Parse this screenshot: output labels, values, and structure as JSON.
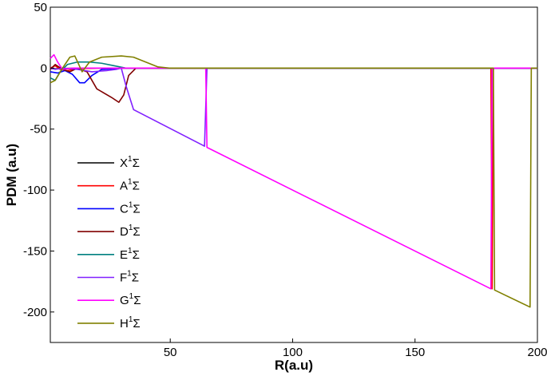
{
  "chart_data": {
    "type": "line",
    "xlabel": "R(a.u)",
    "ylabel": "PDM (a.u)",
    "xlim": [
      1,
      200
    ],
    "ylim": [
      -225,
      50
    ],
    "x_ticks": [
      50,
      100,
      150,
      200
    ],
    "y_ticks": [
      50,
      0,
      -50,
      -100,
      -150,
      -200
    ],
    "grid": false,
    "legend_position": "lower-left",
    "series": [
      {
        "name": "X",
        "name_sup": "1",
        "name_suffix": "Σ",
        "color": "#000000",
        "points": [
          [
            1,
            -0.2
          ],
          [
            3,
            -0.6
          ],
          [
            6,
            -0.3
          ],
          [
            10,
            -0.1
          ],
          [
            20,
            0
          ],
          [
            200,
            0
          ]
        ]
      },
      {
        "name": "A",
        "name_sup": "1",
        "name_suffix": "Σ",
        "color": "#ff0000",
        "points": [
          [
            1,
            0
          ],
          [
            3,
            2
          ],
          [
            5,
            -1
          ],
          [
            8,
            -2
          ],
          [
            12,
            -0.5
          ],
          [
            20,
            0
          ],
          [
            181,
            0
          ],
          [
            181.5,
            -181
          ],
          [
            182,
            0
          ],
          [
            200,
            0
          ]
        ]
      },
      {
        "name": "C",
        "name_sup": "1",
        "name_suffix": "Σ",
        "color": "#0000ff",
        "points": [
          [
            1,
            -3
          ],
          [
            4,
            -4
          ],
          [
            7,
            -2
          ],
          [
            10,
            -5
          ],
          [
            13,
            -12
          ],
          [
            15,
            -12
          ],
          [
            18,
            -6
          ],
          [
            22,
            -1
          ],
          [
            30,
            0
          ],
          [
            200,
            0
          ]
        ]
      },
      {
        "name": "D",
        "name_sup": "1",
        "name_suffix": "Σ",
        "color": "#800000",
        "points": [
          [
            1,
            -1
          ],
          [
            3,
            3
          ],
          [
            6,
            -1
          ],
          [
            9,
            -3
          ],
          [
            12,
            0
          ],
          [
            16,
            -3
          ],
          [
            20,
            -17
          ],
          [
            26,
            -24
          ],
          [
            29,
            -28
          ],
          [
            31,
            -22
          ],
          [
            33,
            -6
          ],
          [
            36,
            0
          ],
          [
            200,
            0
          ]
        ]
      },
      {
        "name": "E",
        "name_sup": "1",
        "name_suffix": "Σ",
        "color": "#008080",
        "points": [
          [
            1,
            -8
          ],
          [
            3,
            -10
          ],
          [
            5,
            -3
          ],
          [
            8,
            3
          ],
          [
            12,
            5
          ],
          [
            17,
            5
          ],
          [
            22,
            4
          ],
          [
            27,
            2
          ],
          [
            32,
            0
          ],
          [
            40,
            0
          ],
          [
            200,
            0
          ]
        ]
      },
      {
        "name": "F",
        "name_sup": "1",
        "name_suffix": "Σ",
        "color": "#8020ff",
        "points": [
          [
            1,
            0
          ],
          [
            3,
            -1
          ],
          [
            6,
            0
          ],
          [
            12,
            -1
          ],
          [
            18,
            -3
          ],
          [
            24,
            -2
          ],
          [
            28,
            -1
          ],
          [
            30,
            0
          ],
          [
            32,
            -15
          ],
          [
            35,
            -34
          ],
          [
            64,
            -64
          ],
          [
            65,
            0
          ],
          [
            200,
            0
          ]
        ]
      },
      {
        "name": "G",
        "name_sup": "1",
        "name_suffix": "Σ",
        "color": "#ff00ff",
        "points": [
          [
            1,
            8
          ],
          [
            2.5,
            11
          ],
          [
            4,
            5
          ],
          [
            6,
            -1
          ],
          [
            10,
            0
          ],
          [
            20,
            0
          ],
          [
            64.5,
            0
          ],
          [
            65,
            -65
          ],
          [
            181,
            -181
          ],
          [
            181.5,
            0
          ],
          [
            200,
            0
          ]
        ]
      },
      {
        "name": "H",
        "name_sup": "1",
        "name_suffix": "Σ",
        "color": "#808000",
        "points": [
          [
            1,
            -12
          ],
          [
            3,
            -10
          ],
          [
            6,
            0
          ],
          [
            9,
            9
          ],
          [
            11,
            10
          ],
          [
            14,
            -3
          ],
          [
            17,
            5
          ],
          [
            22,
            9
          ],
          [
            30,
            10
          ],
          [
            35,
            9
          ],
          [
            40,
            5
          ],
          [
            45,
            1
          ],
          [
            50,
            0
          ],
          [
            182,
            0
          ],
          [
            182.5,
            -182
          ],
          [
            197,
            -196
          ],
          [
            197.5,
            0
          ],
          [
            200,
            0
          ]
        ]
      }
    ]
  }
}
